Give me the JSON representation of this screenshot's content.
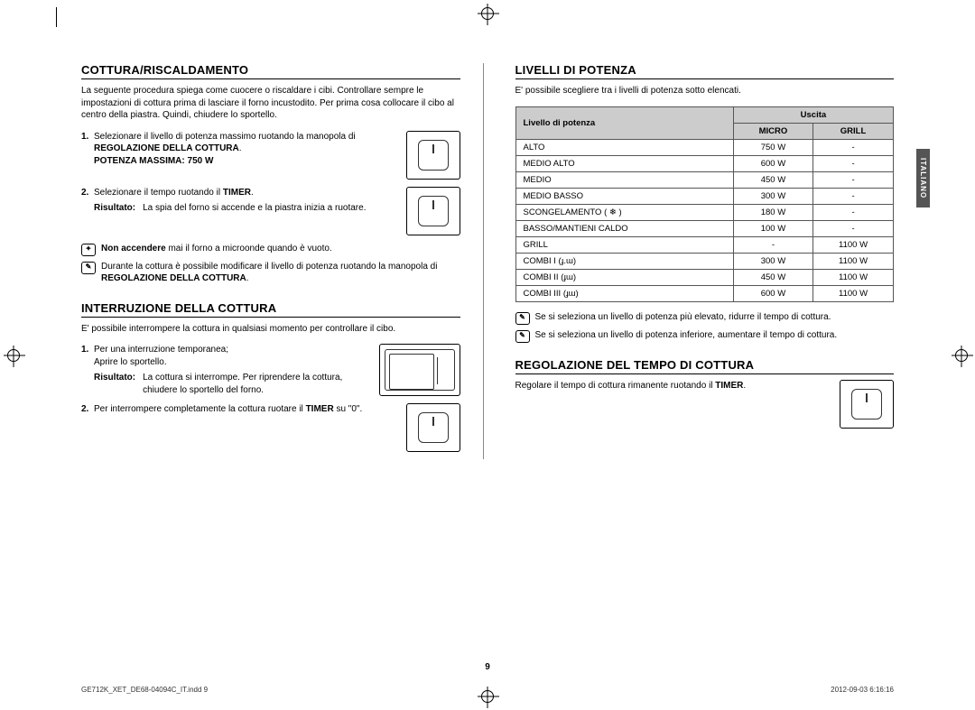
{
  "left": {
    "sec1": {
      "title": "COTTURA/RISCALDAMENTO",
      "intro": "La seguente procedura spiega come cuocere o riscaldare i cibi. Controllare sempre le impostazioni di cottura prima di lasciare il forno incustodito. Per prima cosa collocare il cibo al centro della piastra. Quindi, chiudere lo sportello.",
      "step1a": "Selezionare il livello di potenza massimo ruotando la manopola di ",
      "step1b": "REGOLAZIONE DELLA COTTURA",
      "step1c": ".",
      "step1d": "POTENZA MASSIMA: 750 W",
      "step2a": "Selezionare il tempo ruotando il ",
      "step2b": "TIMER",
      "step2c": ".",
      "ris_label": "Risultato:",
      "ris2": "La spia del forno si accende e la piastra inizia a ruotare.",
      "note1a": "Non accendere",
      "note1b": " mai il forno a microonde quando è vuoto.",
      "note2a": "Durante la cottura è possibile modificare il livello di potenza ruotando la manopola di ",
      "note2b": "REGOLAZIONE DELLA COTTURA",
      "note2c": "."
    },
    "sec2": {
      "title": "INTERRUZIONE DELLA COTTURA",
      "intro": "E' possibile interrompere la cottura in qualsiasi momento per controllare il cibo.",
      "step1a": "Per una interruzione temporanea;",
      "step1b": "Aprire lo sportello.",
      "ris_label": "Risultato:",
      "ris1": "La cottura si interrompe. Per riprendere la cottura, chiudere lo sportello del forno.",
      "step2a": "Per interrompere completamente la cottura ruotare il ",
      "step2b": "TIMER",
      "step2c": " su \"0\"."
    }
  },
  "right": {
    "sec1": {
      "title": "LIVELLI DI POTENZA",
      "intro": "E' possibile scegliere tra i livelli di potenza sotto elencati.",
      "th1": "Livello di potenza",
      "th2": "Uscita",
      "th2a": "MICRO",
      "th2b": "GRILL",
      "rows": [
        {
          "l": "ALTO",
          "m": "750 W",
          "g": "-"
        },
        {
          "l": "MEDIO ALTO",
          "m": "600 W",
          "g": "-"
        },
        {
          "l": "MEDIO",
          "m": "450 W",
          "g": "-"
        },
        {
          "l": "MEDIO BASSO",
          "m": "300 W",
          "g": "-"
        },
        {
          "l": "SCONGELAMENTO ( ❄ )",
          "m": "180 W",
          "g": "-"
        },
        {
          "l": "BASSO/MANTIENI CALDO",
          "m": "100 W",
          "g": "-"
        },
        {
          "l": "GRILL",
          "m": "-",
          "g": "1100 W"
        },
        {
          "l": "COMBI I (ɟ.ɯ)",
          "m": "300 W",
          "g": "1100 W"
        },
        {
          "l": "COMBI II (ɟɯ)",
          "m": "450 W",
          "g": "1100 W"
        },
        {
          "l": "COMBI III (ɟɯ)",
          "m": "600 W",
          "g": "1100 W"
        }
      ],
      "note1": "Se si seleziona un livello di potenza più elevato, ridurre il tempo di cottura.",
      "note2": "Se si seleziona un livello di potenza inferiore, aumentare il tempo di cottura."
    },
    "sec2": {
      "title": "REGOLAZIONE DEL TEMPO DI COTTURA",
      "line_a": "Regolare il tempo di cottura rimanente ruotando il ",
      "line_b": "TIMER",
      "line_c": "."
    }
  },
  "side": "ITALIANO",
  "pagenum": "9",
  "footer_left": "GE712K_XET_DE68-04094C_IT.indd   9",
  "footer_right": "2012-09-03   6:16:16"
}
